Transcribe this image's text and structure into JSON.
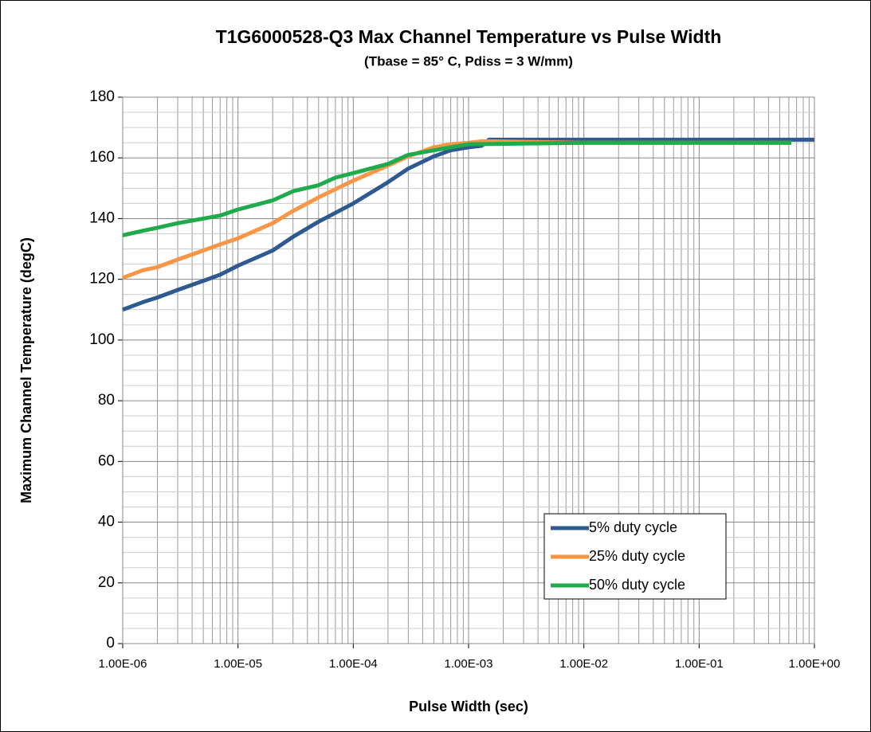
{
  "chart_data": {
    "type": "line",
    "title": "T1G6000528-Q3 Max Channel Temperature vs Pulse Width",
    "subtitle": "(Tbase = 85° C, Pdiss = 3 W/mm)",
    "x_label": "Pulse Width (sec)",
    "y_label": "Maximum Channel Temperature (degC)",
    "x_log": true,
    "xlim": [
      1e-06,
      1
    ],
    "xticks": [
      {
        "value": 1e-06,
        "label": "1.00E-06"
      },
      {
        "value": 1e-05,
        "label": "1.00E-05"
      },
      {
        "value": 0.0001,
        "label": "1.00E-04"
      },
      {
        "value": 0.001,
        "label": "1.00E-03"
      },
      {
        "value": 0.01,
        "label": "1.00E-02"
      },
      {
        "value": 0.1,
        "label": "1.00E-01"
      },
      {
        "value": 1,
        "label": "1.00E+00"
      }
    ],
    "ylim": [
      0,
      180
    ],
    "yticks": [
      0,
      20,
      40,
      60,
      80,
      100,
      120,
      140,
      160,
      180
    ],
    "grid": true,
    "minor_grid": true,
    "legend": "bottom-right",
    "series": [
      {
        "name": "5% duty cycle",
        "color": "#2e5a8f",
        "x": [
          1e-06,
          1.5e-06,
          2e-06,
          3e-06,
          5e-06,
          7e-06,
          1e-05,
          2e-05,
          3e-05,
          5e-05,
          0.0001,
          0.0002,
          0.0003,
          0.0005,
          0.0007,
          0.001,
          0.0013,
          0.0015,
          0.01,
          0.1,
          1
        ],
        "values": [
          110,
          112.5,
          114,
          116.5,
          119.5,
          121.5,
          124.5,
          129.5,
          134,
          139,
          145,
          152,
          156.5,
          160.5,
          162.5,
          163.5,
          164,
          166,
          166,
          166,
          166
        ]
      },
      {
        "name": "25% duty cycle",
        "color": "#f79646",
        "x": [
          1e-06,
          1.5e-06,
          2e-06,
          3e-06,
          5e-06,
          7e-06,
          1e-05,
          2e-05,
          3e-05,
          5e-05,
          0.0001,
          0.0002,
          0.0003,
          0.0005,
          0.0007,
          0.001,
          0.0013,
          0.01,
          0.1,
          0.63
        ],
        "values": [
          120.5,
          123,
          124,
          126.5,
          129.5,
          131.5,
          133.5,
          138.5,
          142.5,
          147,
          152.5,
          157.5,
          160.5,
          163.5,
          164.5,
          165,
          165.5,
          165,
          165,
          165
        ]
      },
      {
        "name": "50% duty cycle",
        "color": "#1fab4b",
        "x": [
          1e-06,
          1.5e-06,
          2e-06,
          3e-06,
          5e-06,
          7e-06,
          1e-05,
          2e-05,
          3e-05,
          5e-05,
          7e-05,
          0.0001,
          0.0002,
          0.0003,
          0.0005,
          0.001,
          0.01,
          0.1,
          0.63
        ],
        "values": [
          134.5,
          136,
          137,
          138.5,
          140,
          141,
          143,
          146,
          149,
          151,
          153.5,
          155,
          158,
          161,
          162.5,
          164.5,
          165,
          165,
          165
        ]
      }
    ]
  }
}
